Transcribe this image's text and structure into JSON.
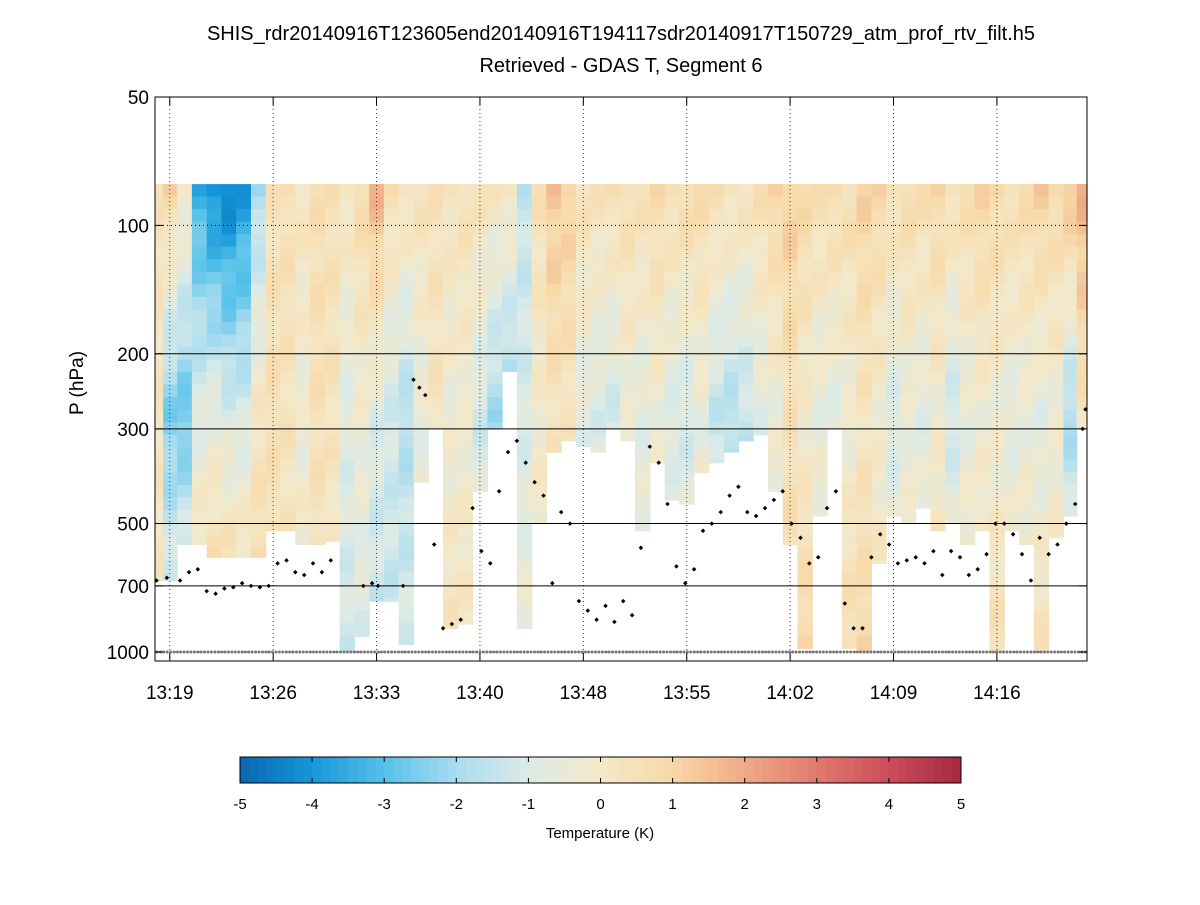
{
  "chart_data": {
    "type": "heatmap",
    "title": "SHIS_rdr20140916T123605end20140916T194117sdr20140917T150729_atm_prof_rtv_filt.h5",
    "subtitle": "Retrieved - GDAS T, Segment 6",
    "ylabel": "P (hPa)",
    "y_scale": "log",
    "y_reversed": true,
    "ylim": [
      50,
      1050
    ],
    "yticks": [
      50,
      100,
      200,
      300,
      500,
      700,
      1000
    ],
    "ygrid_lines": [
      200,
      300,
      500,
      700
    ],
    "x_tick_labels": [
      "13:19",
      "13:26",
      "13:33",
      "13:40",
      "13:48",
      "13:55",
      "14:02",
      "14:09",
      "14:16"
    ],
    "x_tick_minutes": [
      19.5,
      26.5,
      33.5,
      40.5,
      47.5,
      54.5,
      61.5,
      68.5,
      75.5
    ],
    "xlim_minutes": [
      18.5,
      81.6
    ],
    "data_top_pressure": 80,
    "cloud_top_note": "black dots mark retrieval cloud/boundary level (hPa)",
    "colorbar": {
      "label": "Temperature (K)",
      "min": -5,
      "max": 5,
      "ticks": [
        -5,
        -4,
        -3,
        -2,
        -1,
        0,
        1,
        2,
        3,
        4,
        5
      ],
      "colors": [
        "#0a66b0",
        "#1597d9",
        "#55c1ea",
        "#a9dcef",
        "#dcebe7",
        "#f4e8c8",
        "#f8d9a8",
        "#efaa86",
        "#e07a6e",
        "#cc4c5a",
        "#a52a40"
      ]
    },
    "columns": [
      {
        "t": 18.6,
        "bottom": 680,
        "top_anom": 0.4,
        "mid_anom": 0.2,
        "low_anom": 0.2
      },
      {
        "t": 19.5,
        "bottom": 680,
        "top_anom": 1.0,
        "mid_anom": -2.5,
        "low_anom": -0.3
      },
      {
        "t": 20.5,
        "bottom": 560,
        "top_anom": 0.2,
        "mid_anom": -2.8,
        "low_anom": 0.5
      },
      {
        "t": 21.5,
        "bottom": 560,
        "top_anom": -3.5,
        "mid_anom": -0.8,
        "low_anom": 1.2
      },
      {
        "t": 22.5,
        "bottom": 600,
        "top_anom": -4.3,
        "mid_anom": -0.5,
        "low_anom": 1.3
      },
      {
        "t": 23.5,
        "bottom": 600,
        "top_anom": -4.5,
        "mid_anom": -0.9,
        "low_anom": 1.4
      },
      {
        "t": 24.5,
        "bottom": 600,
        "top_anom": -4.0,
        "mid_anom": -1.0,
        "low_anom": 1.2
      },
      {
        "t": 25.5,
        "bottom": 600,
        "top_anom": -2.0,
        "mid_anom": 0.2,
        "low_anom": 1.0
      },
      {
        "t": 26.5,
        "bottom": 520,
        "top_anom": 0.3,
        "mid_anom": 0.5,
        "low_anom": 0.4
      },
      {
        "t": 27.5,
        "bottom": 520,
        "top_anom": 0.5,
        "mid_anom": 0.3,
        "low_anom": 0.1
      },
      {
        "t": 28.5,
        "bottom": 560,
        "top_anom": 0.3,
        "mid_anom": -0.4,
        "low_anom": 0.2
      },
      {
        "t": 29.5,
        "bottom": 560,
        "top_anom": 0.6,
        "mid_anom": 0.5,
        "low_anom": 0.3
      },
      {
        "t": 30.5,
        "bottom": 550,
        "top_anom": 0.5,
        "mid_anom": 0.3,
        "low_anom": -0.2
      },
      {
        "t": 31.5,
        "bottom": 1000,
        "top_anom": 0.3,
        "mid_anom": -0.8,
        "low_anom": -1.2
      },
      {
        "t": 32.5,
        "bottom": 920,
        "top_anom": 0.8,
        "mid_anom": -0.3,
        "low_anom": -1.0
      },
      {
        "t": 33.5,
        "bottom": 760,
        "top_anom": 1.8,
        "mid_anom": -0.9,
        "low_anom": -1.5
      },
      {
        "t": 34.5,
        "bottom": 760,
        "top_anom": 0.6,
        "mid_anom": -1.2,
        "low_anom": -1.4
      },
      {
        "t": 35.5,
        "bottom": 960,
        "top_anom": 0.5,
        "mid_anom": -1.8,
        "low_anom": -1.0
      },
      {
        "t": 36.5,
        "bottom": 400,
        "top_anom": 0.4,
        "mid_anom": -0.6,
        "low_anom": -0.5
      },
      {
        "t": 37.5,
        "bottom": 300,
        "top_anom": 0.4,
        "mid_anom": 0.2,
        "low_anom": 0.1
      },
      {
        "t": 38.5,
        "bottom": 880,
        "top_anom": 0.3,
        "mid_anom": -0.4,
        "low_anom": 0.4
      },
      {
        "t": 39.5,
        "bottom": 860,
        "top_anom": 0.5,
        "mid_anom": -0.3,
        "low_anom": 0.2
      },
      {
        "t": 40.5,
        "bottom": 420,
        "top_anom": 0.4,
        "mid_anom": -1.2,
        "low_anom": 0.0
      },
      {
        "t": 41.5,
        "bottom": 300,
        "top_anom": 0.2,
        "mid_anom": -2.0,
        "low_anom": -0.4
      },
      {
        "t": 42.5,
        "bottom": 220,
        "top_anom": 0.3,
        "mid_anom": -2.5,
        "low_anom": -0.8
      },
      {
        "t": 43.5,
        "bottom": 880,
        "top_anom": -1.5,
        "mid_anom": -1.0,
        "low_anom": -0.3
      },
      {
        "t": 44.5,
        "bottom": 500,
        "top_anom": 0.5,
        "mid_anom": -0.2,
        "low_anom": 0.3
      },
      {
        "t": 45.5,
        "bottom": 340,
        "top_anom": 1.4,
        "mid_anom": 0.3,
        "low_anom": 0.2
      },
      {
        "t": 46.5,
        "bottom": 320,
        "top_anom": 1.2,
        "mid_anom": 0.2,
        "low_anom": -0.2
      },
      {
        "t": 47.5,
        "bottom": 330,
        "top_anom": 0.5,
        "mid_anom": -0.8,
        "low_anom": -0.3
      },
      {
        "t": 48.5,
        "bottom": 340,
        "top_anom": 0.4,
        "mid_anom": -1.0,
        "low_anom": 0.1
      },
      {
        "t": 49.5,
        "bottom": 300,
        "top_anom": 0.6,
        "mid_anom": -1.2,
        "low_anom": 0.2
      },
      {
        "t": 50.5,
        "bottom": 320,
        "top_anom": 0.7,
        "mid_anom": -0.5,
        "low_anom": 0.3
      },
      {
        "t": 51.5,
        "bottom": 520,
        "top_anom": 0.5,
        "mid_anom": -0.8,
        "low_anom": 0.0
      },
      {
        "t": 52.5,
        "bottom": 360,
        "top_anom": 0.8,
        "mid_anom": -0.4,
        "low_anom": 0.2
      },
      {
        "t": 53.5,
        "bottom": 440,
        "top_anom": 0.6,
        "mid_anom": -1.0,
        "low_anom": -0.2
      },
      {
        "t": 54.5,
        "bottom": 450,
        "top_anom": 0.9,
        "mid_anom": -1.2,
        "low_anom": 0.1
      },
      {
        "t": 55.5,
        "bottom": 380,
        "top_anom": 0.8,
        "mid_anom": -0.6,
        "low_anom": 0.3
      },
      {
        "t": 56.5,
        "bottom": 360,
        "top_anom": 0.6,
        "mid_anom": -1.5,
        "low_anom": -0.3
      },
      {
        "t": 57.5,
        "bottom": 340,
        "top_anom": 0.5,
        "mid_anom": -1.8,
        "low_anom": -0.2
      },
      {
        "t": 58.5,
        "bottom": 320,
        "top_anom": 0.4,
        "mid_anom": -1.5,
        "low_anom": -0.6
      },
      {
        "t": 59.5,
        "bottom": 310,
        "top_anom": 0.6,
        "mid_anom": -0.8,
        "low_anom": -0.3
      },
      {
        "t": 60.5,
        "bottom": 420,
        "top_anom": 1.0,
        "mid_anom": -0.5,
        "low_anom": 0.2
      },
      {
        "t": 61.5,
        "bottom": 560,
        "top_anom": 1.2,
        "mid_anom": 0.4,
        "low_anom": 0.8
      },
      {
        "t": 62.5,
        "bottom": 980,
        "top_anom": 0.9,
        "mid_anom": -0.2,
        "low_anom": 1.0
      },
      {
        "t": 63.5,
        "bottom": 480,
        "top_anom": 0.6,
        "mid_anom": -0.6,
        "low_anom": 0.3
      },
      {
        "t": 64.5,
        "bottom": 300,
        "top_anom": 0.8,
        "mid_anom": -0.8,
        "low_anom": 0.1
      },
      {
        "t": 65.5,
        "bottom": 980,
        "top_anom": 0.7,
        "mid_anom": -0.4,
        "low_anom": 0.8
      },
      {
        "t": 66.5,
        "bottom": 1000,
        "top_anom": 1.1,
        "mid_anom": 0.2,
        "low_anom": 0.9
      },
      {
        "t": 67.5,
        "bottom": 620,
        "top_anom": 0.9,
        "mid_anom": -0.2,
        "low_anom": 0.3
      },
      {
        "t": 68.5,
        "bottom": 480,
        "top_anom": 0.6,
        "mid_anom": -1.0,
        "low_anom": 0.0
      },
      {
        "t": 69.5,
        "bottom": 500,
        "top_anom": 0.8,
        "mid_anom": -0.5,
        "low_anom": 0.3
      },
      {
        "t": 70.5,
        "bottom": 460,
        "top_anom": 0.7,
        "mid_anom": -0.8,
        "low_anom": 0.2
      },
      {
        "t": 71.5,
        "bottom": 520,
        "top_anom": 0.9,
        "mid_anom": -0.2,
        "low_anom": 0.5
      },
      {
        "t": 72.5,
        "bottom": 500,
        "top_anom": 0.6,
        "mid_anom": -1.3,
        "low_anom": 0.1
      },
      {
        "t": 73.5,
        "bottom": 560,
        "top_anom": 0.8,
        "mid_anom": -0.6,
        "low_anom": 0.3
      },
      {
        "t": 74.5,
        "bottom": 520,
        "top_anom": 1.0,
        "mid_anom": -0.3,
        "low_anom": 0.4
      },
      {
        "t": 75.5,
        "bottom": 1000,
        "top_anom": 0.9,
        "mid_anom": -0.4,
        "low_anom": 0.5
      },
      {
        "t": 76.5,
        "bottom": 520,
        "top_anom": 0.7,
        "mid_anom": -0.7,
        "low_anom": 0.2
      },
      {
        "t": 77.5,
        "bottom": 560,
        "top_anom": 0.8,
        "mid_anom": -0.5,
        "low_anom": 0.3
      },
      {
        "t": 78.5,
        "bottom": 1000,
        "top_anom": 1.2,
        "mid_anom": -0.8,
        "low_anom": 0.4
      },
      {
        "t": 79.5,
        "bottom": 540,
        "top_anom": 0.9,
        "mid_anom": -0.4,
        "low_anom": 0.3
      },
      {
        "t": 80.5,
        "bottom": 480,
        "top_anom": 1.6,
        "mid_anom": -2.0,
        "low_anom": 0.2
      },
      {
        "t": 81.3,
        "bottom": 300,
        "top_anom": 1.8,
        "mid_anom": 0.3,
        "low_anom": 0.4
      }
    ],
    "cloud_dots": [
      [
        18.6,
        680
      ],
      [
        19.3,
        670
      ],
      [
        20.2,
        680
      ],
      [
        20.8,
        650
      ],
      [
        21.4,
        640
      ],
      [
        22.0,
        720
      ],
      [
        22.6,
        730
      ],
      [
        23.2,
        710
      ],
      [
        23.8,
        705
      ],
      [
        24.4,
        690
      ],
      [
        25.0,
        700
      ],
      [
        25.6,
        705
      ],
      [
        26.2,
        700
      ],
      [
        26.8,
        620
      ],
      [
        27.4,
        610
      ],
      [
        28.0,
        650
      ],
      [
        28.6,
        660
      ],
      [
        29.2,
        620
      ],
      [
        29.8,
        650
      ],
      [
        30.4,
        610
      ],
      [
        32.6,
        700
      ],
      [
        33.2,
        690
      ],
      [
        33.6,
        700
      ],
      [
        35.3,
        700
      ],
      [
        36.0,
        230
      ],
      [
        36.4,
        240
      ],
      [
        36.8,
        250
      ],
      [
        37.4,
        560
      ],
      [
        38.0,
        880
      ],
      [
        38.6,
        860
      ],
      [
        39.2,
        840
      ],
      [
        40.0,
        460
      ],
      [
        40.6,
        580
      ],
      [
        41.2,
        620
      ],
      [
        41.8,
        420
      ],
      [
        42.4,
        340
      ],
      [
        43.0,
        320
      ],
      [
        43.6,
        360
      ],
      [
        44.2,
        400
      ],
      [
        44.8,
        430
      ],
      [
        45.4,
        690
      ],
      [
        46.0,
        470
      ],
      [
        46.6,
        500
      ],
      [
        47.2,
        760
      ],
      [
        47.8,
        800
      ],
      [
        48.4,
        840
      ],
      [
        49.0,
        780
      ],
      [
        49.6,
        850
      ],
      [
        50.2,
        760
      ],
      [
        50.8,
        820
      ],
      [
        51.4,
        570
      ],
      [
        52.0,
        330
      ],
      [
        52.6,
        360
      ],
      [
        53.2,
        450
      ],
      [
        53.8,
        630
      ],
      [
        54.4,
        690
      ],
      [
        55.0,
        640
      ],
      [
        55.6,
        520
      ],
      [
        56.2,
        500
      ],
      [
        56.8,
        470
      ],
      [
        57.4,
        430
      ],
      [
        58.0,
        410
      ],
      [
        58.6,
        470
      ],
      [
        59.2,
        480
      ],
      [
        59.8,
        460
      ],
      [
        60.4,
        440
      ],
      [
        61.0,
        420
      ],
      [
        61.6,
        500
      ],
      [
        62.2,
        540
      ],
      [
        62.8,
        620
      ],
      [
        63.4,
        600
      ],
      [
        64.0,
        460
      ],
      [
        64.6,
        420
      ],
      [
        65.2,
        770
      ],
      [
        65.8,
        880
      ],
      [
        66.4,
        880
      ],
      [
        67.0,
        600
      ],
      [
        67.6,
        530
      ],
      [
        68.2,
        560
      ],
      [
        68.8,
        620
      ],
      [
        69.4,
        610
      ],
      [
        70.0,
        600
      ],
      [
        70.6,
        620
      ],
      [
        71.2,
        580
      ],
      [
        71.8,
        660
      ],
      [
        72.4,
        580
      ],
      [
        73.0,
        600
      ],
      [
        73.6,
        660
      ],
      [
        74.2,
        640
      ],
      [
        74.8,
        590
      ],
      [
        75.4,
        500
      ],
      [
        76.0,
        500
      ],
      [
        76.6,
        530
      ],
      [
        77.2,
        590
      ],
      [
        77.8,
        680
      ],
      [
        78.4,
        540
      ],
      [
        79.0,
        590
      ],
      [
        79.6,
        560
      ],
      [
        80.2,
        500
      ],
      [
        80.8,
        450
      ],
      [
        81.3,
        300
      ],
      [
        81.5,
        270
      ]
    ]
  }
}
